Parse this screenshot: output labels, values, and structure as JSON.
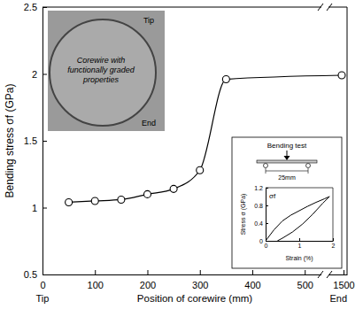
{
  "chart_data": [
    {
      "type": "line",
      "y_label": "Bending stress σf (GPa)",
      "x_label": "Position of corewire (mm)",
      "x": [
        50,
        100,
        150,
        200,
        250,
        300,
        350,
        1490
      ],
      "values": [
        1.04,
        1.05,
        1.06,
        1.1,
        1.14,
        1.28,
        1.96,
        1.99
      ],
      "xlim": [
        0,
        1520
      ],
      "xbreak": [
        530,
        1420
      ],
      "xticks": [
        0,
        100,
        200,
        300,
        400,
        500,
        1500
      ],
      "ylim": [
        0.5,
        2.5
      ],
      "yticks": [
        0.5,
        1,
        1.5,
        2,
        2.5
      ],
      "marker": "circle",
      "color": "#000000",
      "grid": false,
      "end_labels": [
        "Tip",
        "End"
      ],
      "photo_labels": {
        "tip": "Tip",
        "caption": "Corewire with functionally graded properties",
        "end": "End"
      }
    },
    {
      "type": "line",
      "title": "Bending test",
      "x_label": "Strain (%)",
      "y_label": "Stress σ (GPa)",
      "x": [
        0,
        0.25,
        0.5,
        0.75,
        1,
        1.25,
        1.5,
        1.75,
        1.9,
        1.7,
        1.4,
        1.1,
        0.8,
        0.5,
        0.35
      ],
      "values": [
        0,
        0.25,
        0.45,
        0.58,
        0.68,
        0.78,
        0.87,
        0.95,
        1.0,
        0.85,
        0.6,
        0.38,
        0.2,
        0.06,
        0
      ],
      "xlim": [
        0,
        2
      ],
      "xticks": [
        0,
        1,
        2
      ],
      "ylim": [
        0,
        1.2
      ],
      "yticks": [
        0,
        0.4,
        0.8,
        1.2
      ],
      "color": "#000000",
      "annotations": {
        "span": "25mm",
        "peak": "σf"
      }
    }
  ]
}
